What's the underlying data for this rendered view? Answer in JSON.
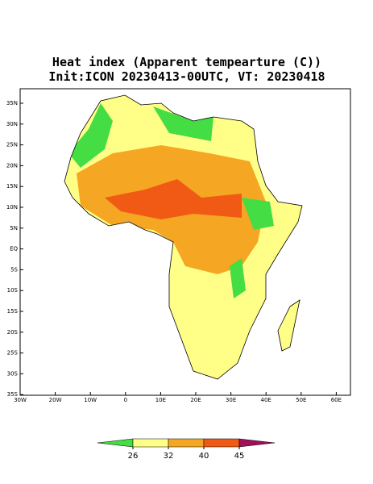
{
  "title": "Heat index (Apparent tempearture (C))",
  "subtitle": "Init:ICON 20230413-00UTC, VT: 20230418",
  "map": {
    "yticks": [
      {
        "value": 35,
        "label": "35N"
      },
      {
        "value": 30,
        "label": "30N"
      },
      {
        "value": 25,
        "label": "25N"
      },
      {
        "value": 20,
        "label": "20N"
      },
      {
        "value": 15,
        "label": "15N"
      },
      {
        "value": 10,
        "label": "10N"
      },
      {
        "value": 5,
        "label": "5N"
      },
      {
        "value": 0,
        "label": "EQ"
      },
      {
        "value": -5,
        "label": "5S"
      },
      {
        "value": -10,
        "label": "10S"
      },
      {
        "value": -15,
        "label": "15S"
      },
      {
        "value": -20,
        "label": "20S"
      },
      {
        "value": -25,
        "label": "25S"
      },
      {
        "value": -30,
        "label": "30S"
      },
      {
        "value": -35,
        "label": "35S"
      }
    ],
    "xticks": [
      {
        "value": -30,
        "label": "30W"
      },
      {
        "value": -20,
        "label": "20W"
      },
      {
        "value": -10,
        "label": "10W"
      },
      0,
      {
        "value": 10,
        "label": "10E"
      },
      {
        "value": 20,
        "label": "20E"
      },
      {
        "value": 30,
        "label": "30E"
      },
      {
        "value": 40,
        "label": "40E"
      },
      {
        "value": 50,
        "label": "50E"
      },
      {
        "value": 60,
        "label": "60E"
      }
    ]
  },
  "colorbar": {
    "ticks": [
      26,
      32,
      40,
      45
    ],
    "colors": [
      "#44dd44",
      "#ffff88",
      "#f5a623",
      "#f05a14",
      "#a0105a"
    ]
  }
}
